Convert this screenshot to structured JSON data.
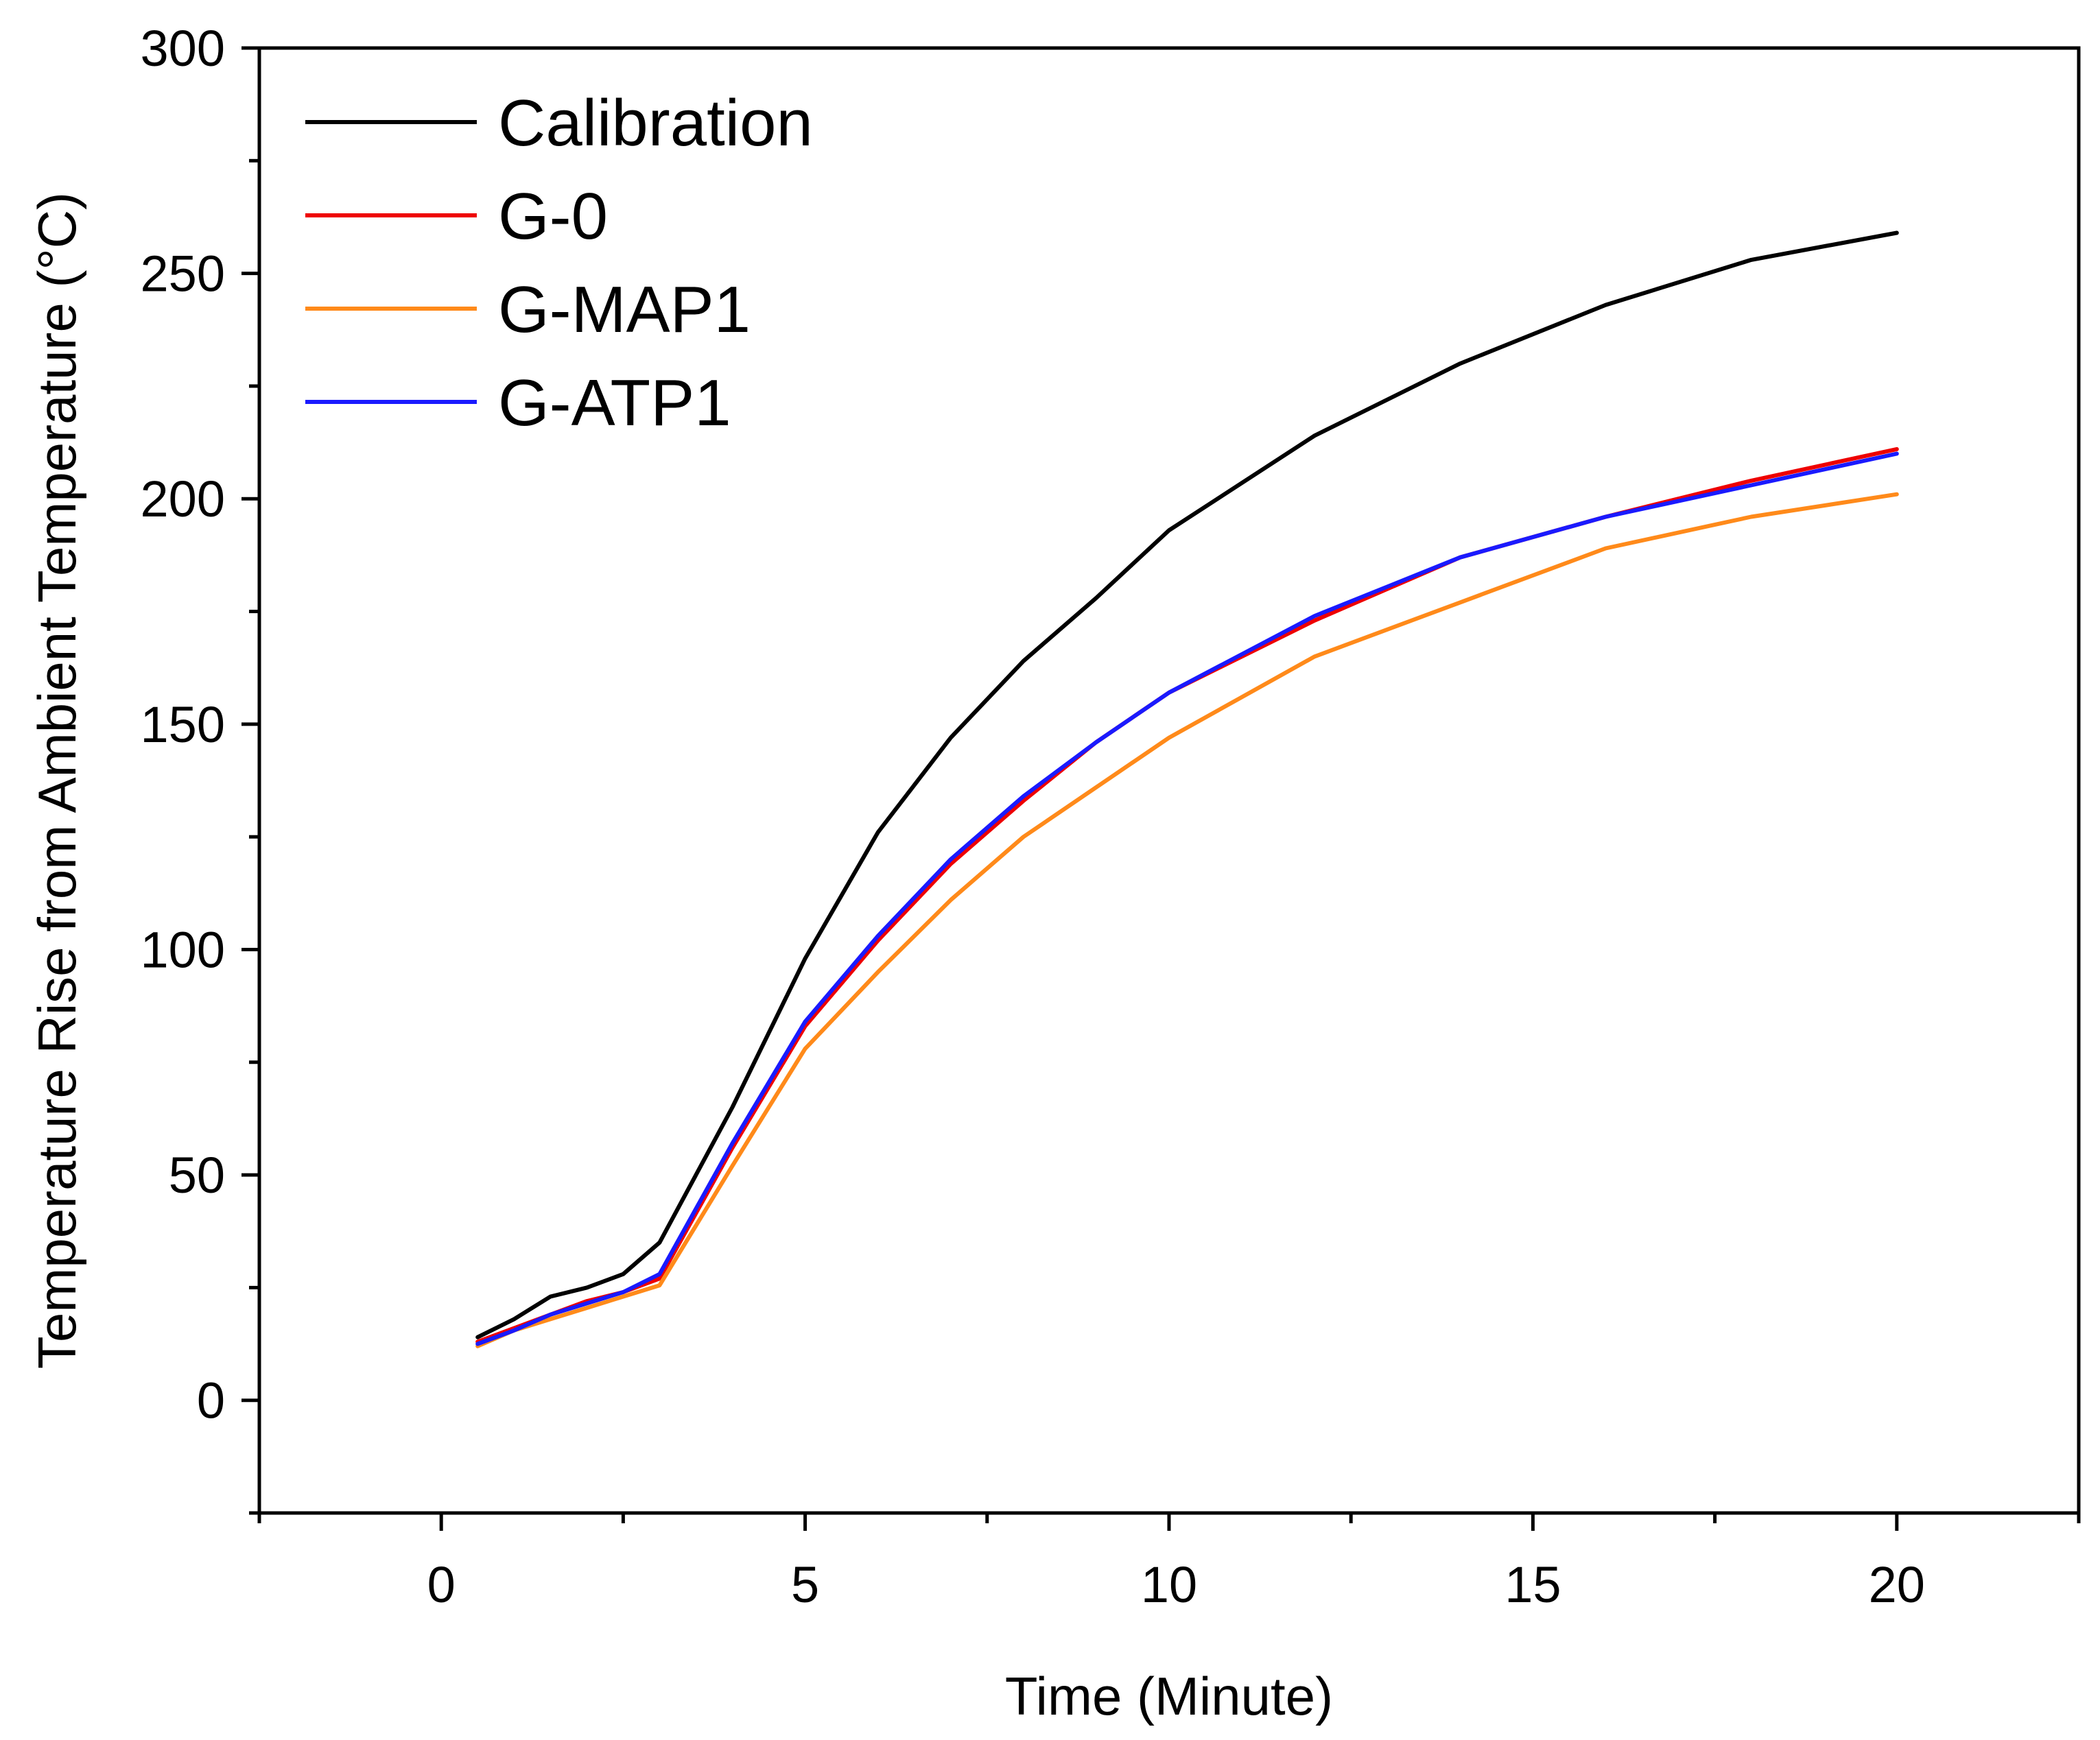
{
  "chart_data": {
    "type": "line",
    "title": "",
    "xlabel": "Time (Minute)",
    "ylabel": "Temperature Rise from Ambient Temperature (°C)",
    "xlim": [
      -2.5,
      22.5
    ],
    "ylim": [
      -25,
      300
    ],
    "xticks": [
      0,
      5,
      10,
      15,
      20
    ],
    "xticks_minor": [
      -2.5,
      2.5,
      7.5,
      12.5,
      17.5,
      22.5
    ],
    "yticks": [
      0,
      50,
      100,
      150,
      200,
      250,
      300
    ],
    "yticks_minor": [
      -25,
      25,
      75,
      125,
      175,
      225,
      275
    ],
    "grid": false,
    "legend_position": "top-left",
    "x": [
      0.5,
      1,
      1.5,
      2,
      2.5,
      3,
      4,
      5,
      6,
      7,
      8,
      9,
      10,
      12,
      14,
      16,
      18,
      20
    ],
    "series": [
      {
        "name": "Calibration",
        "color": "#000000",
        "values": [
          14,
          18,
          23,
          25,
          28,
          35,
          65,
          98,
          126,
          147,
          164,
          178,
          193,
          214,
          230,
          243,
          253,
          259
        ]
      },
      {
        "name": "G-0",
        "color": "#ee0000",
        "values": [
          13,
          16,
          19,
          22,
          24,
          27,
          56,
          83,
          102,
          119,
          133,
          146,
          157,
          173,
          187,
          196,
          204,
          211
        ]
      },
      {
        "name": "G-MAP1",
        "color": "#ff8a1a",
        "values": [
          12,
          15.5,
          18,
          20.5,
          23,
          25.5,
          52,
          78,
          95,
          111,
          125,
          136,
          147,
          165,
          177,
          189,
          196,
          201
        ]
      },
      {
        "name": "G-ATP1",
        "color": "#1a1aff",
        "values": [
          12.5,
          15.5,
          19,
          21.5,
          24,
          28,
          57,
          84,
          103,
          120,
          134,
          146,
          157,
          174,
          187,
          196,
          203,
          210
        ]
      }
    ]
  }
}
